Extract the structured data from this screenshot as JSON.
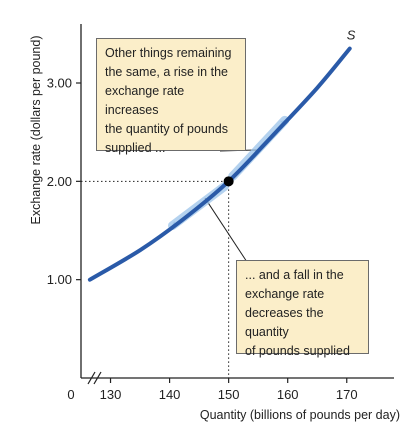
{
  "chart_data": {
    "type": "line",
    "title": "",
    "xlabel": "Quantity (billions of pounds per day)",
    "ylabel": "Exchange rate (dollars per pound)",
    "xlim": [
      125,
      178
    ],
    "ylim": [
      0.0,
      3.6
    ],
    "x_ticks": [
      130,
      140,
      150,
      160,
      170
    ],
    "y_ticks": [
      1.0,
      2.0,
      3.0
    ],
    "x_tick_labels": [
      "130",
      "140",
      "150",
      "160",
      "170"
    ],
    "y_tick_labels": [
      "1.00",
      "2.00",
      "3.00"
    ],
    "origin_label": "0",
    "axis_break": true,
    "grid": false,
    "series": [
      {
        "name": "S",
        "color": "#2a5aa8",
        "x": [
          126.5,
          135,
          142,
          150,
          158,
          165,
          170.5
        ],
        "y": [
          1.0,
          1.3,
          1.6,
          2.0,
          2.5,
          2.95,
          3.35
        ]
      }
    ],
    "equilibrium_point": {
      "x": 150,
      "y": 2.0
    },
    "annotations": [
      {
        "id": "rise",
        "lines": [
          "Other things remaining",
          "the same, a rise in the",
          "exchange rate increases",
          "the quantity of pounds",
          "supplied ..."
        ]
      },
      {
        "id": "fall",
        "lines": [
          "... and a fall in the",
          "exchange rate",
          "decreases the quantity",
          "of pounds supplied"
        ]
      }
    ]
  }
}
